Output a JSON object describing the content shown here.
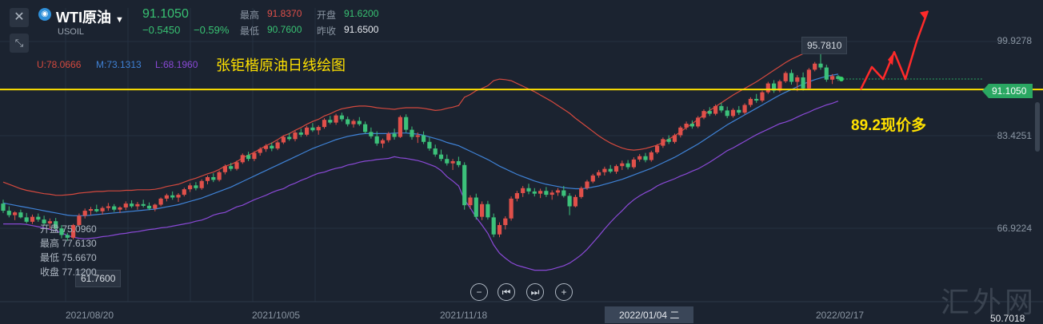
{
  "header": {
    "close_icon": "close-icon",
    "collapse_icon": "collapse-arrows-icon",
    "symbol_name": "WTI原油",
    "symbol_code": "USOIL",
    "last_price": "91.1050",
    "change": "−0.5450",
    "change_pct": "−0.59%",
    "quote": {
      "high_label": "最高",
      "high": "91.8370",
      "open_label": "开盘",
      "open": "91.6200",
      "low_label": "最低",
      "low": "90.7600",
      "prev_close_label": "昨收",
      "prev_close": "91.6500"
    }
  },
  "bollinger": {
    "upper": "U:78.0666",
    "middle": "M:73.1313",
    "lower": "L:68.1960"
  },
  "annotations": {
    "title": "张钜楷原油日线绘图",
    "price_note": "89.2现价多"
  },
  "ohlc_tip": {
    "open": "开盘 75.0960",
    "high": "最高 77.6130",
    "low": "最低 75.6670",
    "close": "收盘 77.1200"
  },
  "price_tags": {
    "current": "91.1050",
    "high": "95.7810",
    "low": "61.7600",
    "bottom_right": "50.7018"
  },
  "nav": [
    "−",
    "⏮",
    "⏭",
    "+"
  ],
  "watermark": "汇外网",
  "colors": {
    "up": "#e0504a",
    "down": "#3cc17a",
    "upper_band": "#d4493e",
    "middle_band": "#3f82d6",
    "lower_band": "#8a49d6",
    "annotation": "#ffe100",
    "current_tag": "#2aa762"
  },
  "chart_data": {
    "type": "candlestick",
    "x_ticks": [
      "2021/08/20",
      "2021/10/05",
      "2021/11/18",
      "2022/01/04 二",
      "2022/02/17"
    ],
    "y_ticks": [
      "99.9278",
      "83.4251",
      "66.9224"
    ],
    "ylim": [
      50.7,
      104
    ],
    "series_candles": [
      [
        68.5,
        69.2,
        66.8,
        67.2
      ],
      [
        67.2,
        68.0,
        66.0,
        66.4
      ],
      [
        66.4,
        67.1,
        65.5,
        66.9
      ],
      [
        66.9,
        67.4,
        65.8,
        66.0
      ],
      [
        66.0,
        66.8,
        64.9,
        65.2
      ],
      [
        65.2,
        66.5,
        64.8,
        66.1
      ],
      [
        66.1,
        66.7,
        65.2,
        65.6
      ],
      [
        65.6,
        66.3,
        64.5,
        64.9
      ],
      [
        64.9,
        65.8,
        63.9,
        65.3
      ],
      [
        65.3,
        65.9,
        63.5,
        64.0
      ],
      [
        64.0,
        64.6,
        62.2,
        62.8
      ],
      [
        62.8,
        63.2,
        61.76,
        62.3
      ],
      [
        62.3,
        64.8,
        62.0,
        64.6
      ],
      [
        64.6,
        66.7,
        64.3,
        66.3
      ],
      [
        66.3,
        67.6,
        65.8,
        67.2
      ],
      [
        67.2,
        67.9,
        66.4,
        67.5
      ],
      [
        67.5,
        68.3,
        66.9,
        67.1
      ],
      [
        67.1,
        68.0,
        66.5,
        67.7
      ],
      [
        67.7,
        68.6,
        67.2,
        68.0
      ],
      [
        68.0,
        68.4,
        67.0,
        67.4
      ],
      [
        67.4,
        68.0,
        66.8,
        67.8
      ],
      [
        67.8,
        68.9,
        67.3,
        68.5
      ],
      [
        68.5,
        69.1,
        67.7,
        68.0
      ],
      [
        68.0,
        68.8,
        67.4,
        68.4
      ],
      [
        68.4,
        69.2,
        67.8,
        68.1
      ],
      [
        68.1,
        68.7,
        67.3,
        67.6
      ],
      [
        67.6,
        68.5,
        67.1,
        68.3
      ],
      [
        68.3,
        69.6,
        68.0,
        69.4
      ],
      [
        69.4,
        70.3,
        68.9,
        70.0
      ],
      [
        70.0,
        70.7,
        69.2,
        69.6
      ],
      [
        69.6,
        70.4,
        68.8,
        70.1
      ],
      [
        70.1,
        71.4,
        69.8,
        71.1
      ],
      [
        71.1,
        72.2,
        70.6,
        71.8
      ],
      [
        71.8,
        72.4,
        70.9,
        71.3
      ],
      [
        71.3,
        72.9,
        71.0,
        72.6
      ],
      [
        72.6,
        73.6,
        72.0,
        73.3
      ],
      [
        73.3,
        74.0,
        72.4,
        72.8
      ],
      [
        72.8,
        74.5,
        72.5,
        74.2
      ],
      [
        74.2,
        75.6,
        73.8,
        75.3
      ],
      [
        75.3,
        75.9,
        74.4,
        74.8
      ],
      [
        74.8,
        76.3,
        74.5,
        76.0
      ],
      [
        76.0,
        77.6,
        75.7,
        77.3
      ],
      [
        77.3,
        77.9,
        76.2,
        76.6
      ],
      [
        76.6,
        78.0,
        76.2,
        77.7
      ],
      [
        77.7,
        78.7,
        77.2,
        78.4
      ],
      [
        78.4,
        79.3,
        77.9,
        79.0
      ],
      [
        79.0,
        79.6,
        78.0,
        78.5
      ],
      [
        78.5,
        79.9,
        78.2,
        79.6
      ],
      [
        79.6,
        80.9,
        79.3,
        80.6
      ],
      [
        80.6,
        81.3,
        79.9,
        80.2
      ],
      [
        80.2,
        81.7,
        79.8,
        81.4
      ],
      [
        81.4,
        82.1,
        80.6,
        81.0
      ],
      [
        81.0,
        82.6,
        80.7,
        82.3
      ],
      [
        82.3,
        83.1,
        81.5,
        81.8
      ],
      [
        81.8,
        82.7,
        81.0,
        82.4
      ],
      [
        82.4,
        84.0,
        82.1,
        83.7
      ],
      [
        83.7,
        84.4,
        82.9,
        83.2
      ],
      [
        83.2,
        84.8,
        82.8,
        84.5
      ],
      [
        84.5,
        85.0,
        83.4,
        83.8
      ],
      [
        83.8,
        84.3,
        82.5,
        82.9
      ],
      [
        82.9,
        83.8,
        82.3,
        83.5
      ],
      [
        83.5,
        84.2,
        82.6,
        82.9
      ],
      [
        82.9,
        83.4,
        81.2,
        81.5
      ],
      [
        81.5,
        82.3,
        80.3,
        80.7
      ],
      [
        80.7,
        81.6,
        79.0,
        79.4
      ],
      [
        79.4,
        80.3,
        78.6,
        80.0
      ],
      [
        80.0,
        81.5,
        79.6,
        81.2
      ],
      [
        81.2,
        82.1,
        80.1,
        80.6
      ],
      [
        80.6,
        84.5,
        80.4,
        84.2
      ],
      [
        84.2,
        84.7,
        81.4,
        81.9
      ],
      [
        81.9,
        82.5,
        80.1,
        80.6
      ],
      [
        80.6,
        81.4,
        79.5,
        80.9
      ],
      [
        80.9,
        81.6,
        79.3,
        79.7
      ],
      [
        79.7,
        80.5,
        78.1,
        78.5
      ],
      [
        78.5,
        79.2,
        77.0,
        77.4
      ],
      [
        77.4,
        78.3,
        76.2,
        76.6
      ],
      [
        76.6,
        77.4,
        75.4,
        75.8
      ],
      [
        75.8,
        76.6,
        74.6,
        76.2
      ],
      [
        76.2,
        77.0,
        75.1,
        75.5
      ],
      [
        75.5,
        76.0,
        67.4,
        68.2
      ],
      [
        68.2,
        70.0,
        67.5,
        69.6
      ],
      [
        69.6,
        70.3,
        65.6,
        66.1
      ],
      [
        66.1,
        68.9,
        65.5,
        68.4
      ],
      [
        68.4,
        69.0,
        65.6,
        66.0
      ],
      [
        66.0,
        66.7,
        62.4,
        62.9
      ],
      [
        62.9,
        65.1,
        62.4,
        64.6
      ],
      [
        64.6,
        66.2,
        63.8,
        65.8
      ],
      [
        65.8,
        69.8,
        65.4,
        69.4
      ],
      [
        69.4,
        70.8,
        68.9,
        70.4
      ],
      [
        70.4,
        71.7,
        69.7,
        71.3
      ],
      [
        71.3,
        72.1,
        70.2,
        70.7
      ],
      [
        70.7,
        71.3,
        69.8,
        70.3
      ],
      [
        70.3,
        71.2,
        69.5,
        70.8
      ],
      [
        70.8,
        71.5,
        69.7,
        70.1
      ],
      [
        70.1,
        70.9,
        69.2,
        70.5
      ],
      [
        70.5,
        71.3,
        69.9,
        70.9
      ],
      [
        70.9,
        71.7,
        69.6,
        69.9
      ],
      [
        69.9,
        70.4,
        66.4,
        68.0
      ],
      [
        68.0,
        70.1,
        67.8,
        69.7
      ],
      [
        69.7,
        71.6,
        69.4,
        71.3
      ],
      [
        71.3,
        72.8,
        71.0,
        72.5
      ],
      [
        72.5,
        73.9,
        72.2,
        73.6
      ],
      [
        73.6,
        74.6,
        73.2,
        74.2
      ],
      [
        74.2,
        75.2,
        73.6,
        74.8
      ],
      [
        74.8,
        75.5,
        74.0,
        74.3
      ],
      [
        74.3,
        75.6,
        73.9,
        75.3
      ],
      [
        75.3,
        76.3,
        74.6,
        75.8
      ],
      [
        75.8,
        76.4,
        74.7,
        75.1
      ],
      [
        75.1,
        76.9,
        74.8,
        76.5
      ],
      [
        76.5,
        77.5,
        76.1,
        77.1
      ],
      [
        77.1,
        77.7,
        76.0,
        76.4
      ],
      [
        76.4,
        78.1,
        76.1,
        77.8
      ],
      [
        77.8,
        79.3,
        77.5,
        79.0
      ],
      [
        79.0,
        80.5,
        78.6,
        80.2
      ],
      [
        80.2,
        80.9,
        79.3,
        79.7
      ],
      [
        79.7,
        81.2,
        79.4,
        80.9
      ],
      [
        80.9,
        82.6,
        80.5,
        82.3
      ],
      [
        82.3,
        83.4,
        81.9,
        83.0
      ],
      [
        83.0,
        83.6,
        82.1,
        82.5
      ],
      [
        82.5,
        84.4,
        82.2,
        84.1
      ],
      [
        84.1,
        85.6,
        83.8,
        85.3
      ],
      [
        85.3,
        86.0,
        84.4,
        84.8
      ],
      [
        84.8,
        86.5,
        84.5,
        86.2
      ],
      [
        86.2,
        86.8,
        85.0,
        85.4
      ],
      [
        85.4,
        86.1,
        84.0,
        84.4
      ],
      [
        84.4,
        85.8,
        84.1,
        85.5
      ],
      [
        85.5,
        86.2,
        84.6,
        85.0
      ],
      [
        85.0,
        86.7,
        84.7,
        86.4
      ],
      [
        86.4,
        87.8,
        86.0,
        87.5
      ],
      [
        87.5,
        88.4,
        86.8,
        87.2
      ],
      [
        87.2,
        89.0,
        86.9,
        88.7
      ],
      [
        88.7,
        90.6,
        88.4,
        90.3
      ],
      [
        90.3,
        90.9,
        88.6,
        89.0
      ],
      [
        89.0,
        91.0,
        88.7,
        90.7
      ],
      [
        90.7,
        92.5,
        90.4,
        92.2
      ],
      [
        92.2,
        92.8,
        90.1,
        90.6
      ],
      [
        90.6,
        91.8,
        88.9,
        91.4
      ],
      [
        91.4,
        92.3,
        89.0,
        89.4
      ],
      [
        89.4,
        93.1,
        89.1,
        92.8
      ],
      [
        92.8,
        94.2,
        92.5,
        93.9
      ],
      [
        93.9,
        95.781,
        92.8,
        93.2
      ],
      [
        93.2,
        93.7,
        90.6,
        91.0
      ],
      [
        91.0,
        92.0,
        90.2,
        91.65
      ],
      [
        91.62,
        91.837,
        90.76,
        91.105
      ]
    ],
    "series": [
      {
        "name": "U",
        "values": [
          72.4,
          72.0,
          71.6,
          71.2,
          70.9,
          70.7,
          70.5,
          70.3,
          70.2,
          70.0,
          70.0,
          70.1,
          70.2,
          70.4,
          70.5,
          70.6,
          70.7,
          70.7,
          70.8,
          70.8,
          70.8,
          70.9,
          70.9,
          71.0,
          71.0,
          71.0,
          71.1,
          71.3,
          71.6,
          71.8,
          72.0,
          72.4,
          72.8,
          73.1,
          73.5,
          73.9,
          74.2,
          74.7,
          75.3,
          75.6,
          76.1,
          76.8,
          77.3,
          77.8,
          78.4,
          79.0,
          79.5,
          80.1,
          80.8,
          81.2,
          81.8,
          82.3,
          82.9,
          83.4,
          83.8,
          84.4,
          84.8,
          85.3,
          85.7,
          85.9,
          86.1,
          86.2,
          86.2,
          86.1,
          85.9,
          85.8,
          85.7,
          85.6,
          85.8,
          85.9,
          85.9,
          85.9,
          85.8,
          85.6,
          85.4,
          85.5,
          85.8,
          86.0,
          86.3,
          87.8,
          88.3,
          89.0,
          89.4,
          89.9,
          90.8,
          91.1,
          91.0,
          90.8,
          90.3,
          89.8,
          89.3,
          88.8,
          88.2,
          87.6,
          87.0,
          86.3,
          85.6,
          84.9,
          84.0,
          83.2,
          82.4,
          81.6,
          80.8,
          80.1,
          79.5,
          79.0,
          78.6,
          78.3,
          78.2,
          78.3,
          78.5,
          78.8,
          79.1,
          79.6,
          80.2,
          80.8,
          81.5,
          82.3,
          83.0,
          83.8,
          84.6,
          85.4,
          86.1,
          86.8,
          87.5,
          88.2,
          88.8,
          89.4,
          90.0,
          90.6,
          91.3,
          92.0,
          92.7,
          93.4,
          94.1,
          94.7,
          95.2,
          95.7,
          96.1,
          96.4,
          96.6,
          96.8,
          96.9,
          96.9
        ]
      },
      {
        "name": "M",
        "values": [
          68.6,
          68.4,
          68.2,
          68.0,
          67.8,
          67.6,
          67.4,
          67.2,
          67.0,
          66.8,
          66.6,
          66.4,
          66.3,
          66.3,
          66.3,
          66.4,
          66.5,
          66.6,
          66.7,
          66.8,
          66.9,
          67.0,
          67.1,
          67.2,
          67.3,
          67.4,
          67.5,
          67.7,
          67.9,
          68.1,
          68.3,
          68.6,
          68.9,
          69.2,
          69.5,
          69.9,
          70.3,
          70.7,
          71.1,
          71.5,
          72.0,
          72.5,
          73.0,
          73.5,
          74.0,
          74.5,
          75.0,
          75.5,
          76.0,
          76.5,
          77.0,
          77.5,
          78.0,
          78.5,
          78.9,
          79.3,
          79.7,
          80.1,
          80.4,
          80.7,
          80.9,
          81.1,
          81.2,
          81.2,
          81.2,
          81.2,
          81.2,
          81.3,
          81.3,
          81.3,
          81.2,
          81.1,
          80.9,
          80.6,
          80.3,
          80.0,
          79.6,
          79.3,
          79.0,
          78.5,
          78.0,
          77.5,
          77.0,
          76.5,
          75.9,
          75.3,
          74.8,
          74.3,
          73.8,
          73.4,
          73.0,
          72.6,
          72.3,
          72.0,
          71.8,
          71.6,
          71.4,
          71.3,
          71.2,
          71.2,
          71.3,
          71.5,
          71.7,
          72.0,
          72.3,
          72.6,
          72.9,
          73.3,
          73.7,
          74.1,
          74.5,
          74.9,
          75.4,
          75.9,
          76.4,
          76.9,
          77.5,
          78.1,
          78.7,
          79.3,
          80.0,
          80.7,
          81.4,
          82.1,
          82.8,
          83.4,
          84.0,
          84.6,
          85.2,
          85.8,
          86.4,
          87.0,
          87.6,
          88.2,
          88.7,
          89.2,
          89.7,
          90.2,
          90.6,
          91.0,
          91.3,
          91.6,
          91.8,
          92.0
        ]
      },
      {
        "name": "L",
        "values": [
          64.8,
          64.8,
          64.8,
          64.8,
          64.7,
          64.5,
          64.3,
          64.1,
          63.8,
          63.6,
          63.2,
          62.7,
          62.4,
          62.2,
          62.1,
          62.2,
          62.3,
          62.5,
          62.6,
          62.8,
          63.0,
          63.1,
          63.3,
          63.4,
          63.6,
          63.8,
          63.9,
          64.1,
          64.2,
          64.4,
          64.6,
          64.8,
          65.0,
          65.3,
          65.5,
          65.9,
          66.4,
          66.7,
          66.9,
          67.4,
          67.9,
          68.2,
          68.7,
          69.2,
          69.6,
          70.0,
          70.5,
          70.9,
          71.2,
          71.8,
          72.2,
          72.7,
          73.1,
          73.6,
          74.0,
          74.2,
          74.6,
          74.9,
          75.1,
          75.5,
          75.7,
          76.0,
          76.2,
          76.3,
          76.5,
          76.6,
          76.7,
          77.0,
          76.8,
          76.7,
          76.5,
          76.3,
          76.0,
          75.6,
          75.2,
          74.5,
          73.4,
          72.6,
          71.7,
          69.2,
          67.7,
          66.0,
          64.6,
          63.1,
          61.0,
          59.5,
          58.6,
          57.8,
          57.3,
          57.0,
          56.7,
          56.4,
          56.4,
          56.4,
          56.6,
          56.9,
          57.2,
          57.7,
          58.4,
          59.2,
          60.2,
          61.4,
          62.6,
          63.9,
          65.1,
          66.2,
          67.2,
          68.3,
          69.2,
          69.9,
          70.5,
          71.0,
          71.7,
          72.2,
          72.6,
          73.0,
          73.5,
          73.9,
          74.4,
          74.8,
          75.4,
          76.0,
          76.7,
          77.4,
          78.1,
          78.6,
          79.2,
          79.8,
          80.4,
          81.0,
          81.5,
          82.0,
          82.5,
          83.0,
          83.3,
          83.7,
          84.2,
          84.7,
          85.1,
          85.6,
          86.0,
          86.4,
          86.7,
          87.1
        ]
      }
    ],
    "horizontal_line": 89.2,
    "drawn_arrow_path": [
      [
        89.2,
        0
      ],
      [
        93.3,
        1
      ],
      [
        91.1,
        2
      ],
      [
        96.0,
        3
      ],
      [
        91.1,
        4
      ],
      [
        97.9,
        5
      ],
      [
        103.5,
        6
      ]
    ]
  }
}
